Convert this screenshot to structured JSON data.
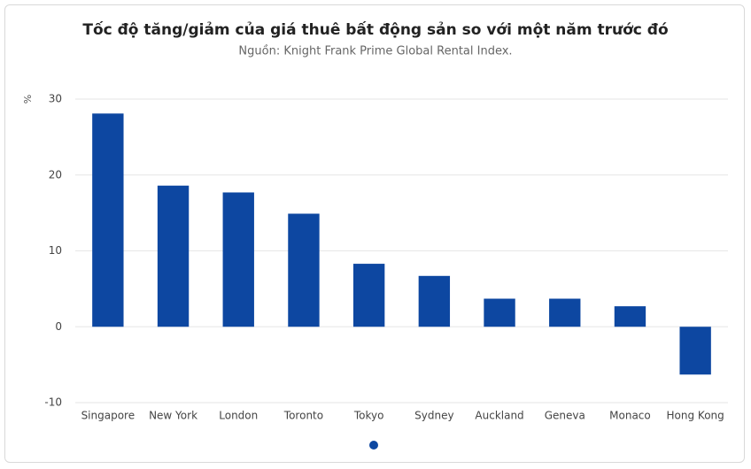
{
  "chart_data": {
    "type": "bar",
    "title": "Tốc độ tăng/giảm của giá thuê bất động sản so với một năm trước đó",
    "subtitle": "Nguồn: Knight Frank Prime Global Rental Index.",
    "y_label": "%",
    "categories": [
      "Singapore",
      "New York",
      "London",
      "Toronto",
      "Tokyo",
      "Sydney",
      "Auckland",
      "Geneva",
      "Monaco",
      "Hong Kong"
    ],
    "values": [
      28.1,
      18.6,
      17.7,
      14.9,
      8.3,
      6.7,
      3.7,
      3.7,
      2.7,
      -6.3
    ],
    "color": "#0d47a1",
    "ylim": [
      -10,
      30
    ],
    "yticks": [
      -10,
      0,
      10,
      20,
      30
    ],
    "grid": true
  }
}
